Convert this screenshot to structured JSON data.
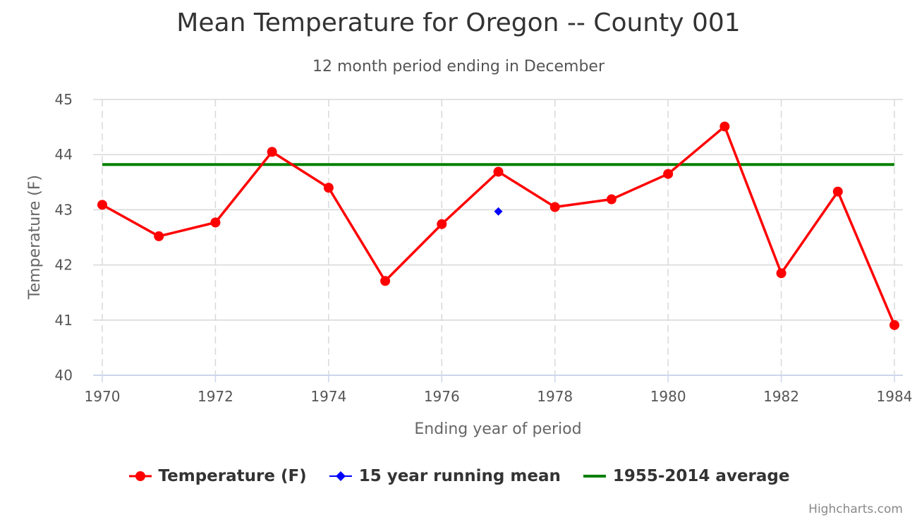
{
  "chart_data": {
    "type": "line",
    "title": "Mean Temperature for Oregon -- County 001",
    "subtitle": "12 month period ending in December",
    "xlabel": "Ending year of period",
    "ylabel": "Temperature (F)",
    "xlim": [
      1970,
      1984
    ],
    "ylim": [
      40,
      45
    ],
    "x_ticks": [
      1970,
      1972,
      1974,
      1976,
      1978,
      1980,
      1982,
      1984
    ],
    "y_ticks": [
      40,
      41,
      42,
      43,
      44,
      45
    ],
    "grid": true,
    "legend_position": "bottom-center",
    "series": [
      {
        "name": "Temperature (F)",
        "color": "#ff0000",
        "marker": "circle",
        "x": [
          1970,
          1971,
          1972,
          1973,
          1974,
          1975,
          1976,
          1977,
          1978,
          1979,
          1980,
          1981,
          1982,
          1983,
          1984
        ],
        "values": [
          43.09,
          42.52,
          42.77,
          44.05,
          43.4,
          41.71,
          42.74,
          43.69,
          43.05,
          43.19,
          43.65,
          44.51,
          41.85,
          43.33,
          40.91
        ]
      },
      {
        "name": "15 year running mean",
        "color": "#0000ff",
        "marker": "diamond",
        "x": [
          1977
        ],
        "values": [
          42.97
        ]
      },
      {
        "name": "1955-2014 average",
        "color": "#008000",
        "marker": "none",
        "x": [
          1970,
          1984
        ],
        "values": [
          43.82,
          43.82
        ]
      }
    ]
  },
  "credits": "Highcharts.com"
}
